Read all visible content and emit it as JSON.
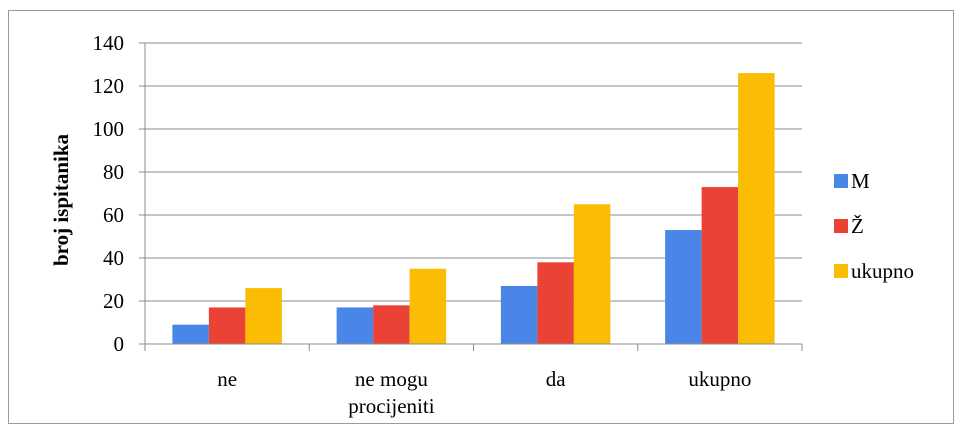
{
  "chart_data": {
    "type": "bar",
    "title": "",
    "xlabel": "",
    "ylabel": "broj ispitanika",
    "ylim": [
      0,
      140
    ],
    "yticks": [
      0,
      20,
      40,
      60,
      80,
      100,
      120,
      140
    ],
    "grid": true,
    "legend_position": "right",
    "categories": [
      [
        "ne"
      ],
      [
        "ne mogu",
        "procijeniti"
      ],
      [
        "da"
      ],
      [
        "ukupno"
      ]
    ],
    "series": [
      {
        "name": "M",
        "color": "#4a86e8",
        "values": [
          9,
          17,
          27,
          53
        ]
      },
      {
        "name": "Ž",
        "color": "#ea4335",
        "values": [
          17,
          18,
          38,
          73
        ]
      },
      {
        "name": "ukupno",
        "color": "#fbbc04",
        "values": [
          26,
          35,
          65,
          126
        ]
      }
    ]
  }
}
